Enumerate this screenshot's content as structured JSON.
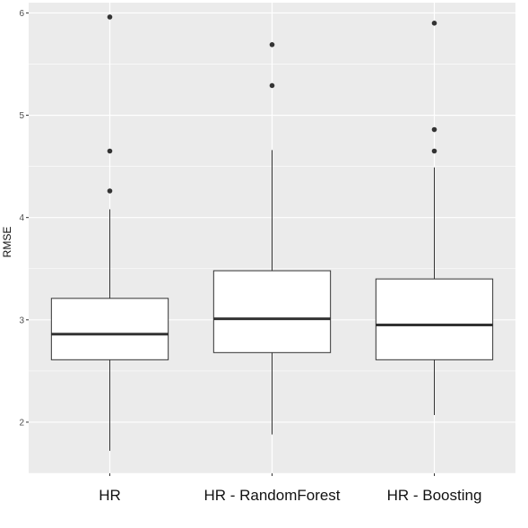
{
  "chart_data": {
    "type": "boxplot",
    "title": "",
    "xlabel": "",
    "ylabel": "RMSE",
    "ylim": [
      1.5,
      6.1
    ],
    "yticks": [
      2,
      3,
      4,
      5,
      6
    ],
    "grid": true,
    "background": "#ebebeb",
    "grid_color": "#ffffff",
    "box_fill": "#ffffff",
    "line_color": "#333333",
    "categories": [
      "HR",
      "HR - RandomForest",
      "HR - Boosting"
    ],
    "boxes": [
      {
        "category": "HR",
        "whisker_low": 1.72,
        "q1": 2.61,
        "median": 2.86,
        "q3": 3.21,
        "whisker_high": 4.08,
        "outliers": [
          4.26,
          4.65,
          5.96
        ]
      },
      {
        "category": "HR - RandomForest",
        "whisker_low": 1.88,
        "q1": 2.68,
        "median": 3.01,
        "q3": 3.48,
        "whisker_high": 4.66,
        "outliers": [
          5.29,
          5.69
        ]
      },
      {
        "category": "HR - Boosting",
        "whisker_low": 2.07,
        "q1": 2.61,
        "median": 2.95,
        "q3": 3.4,
        "whisker_high": 4.49,
        "outliers": [
          4.65,
          4.86,
          5.9
        ]
      }
    ]
  }
}
